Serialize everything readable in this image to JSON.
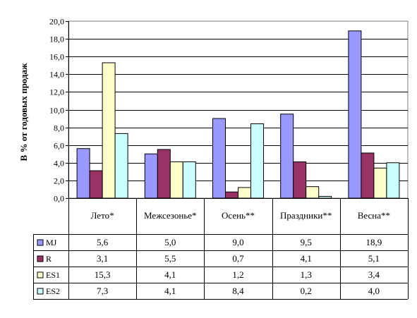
{
  "chart_data": {
    "type": "bar",
    "ylabel": "В % от годовых продаж",
    "ylim": [
      0,
      20
    ],
    "ytick_step": 2,
    "ytick_labels": [
      "0,0",
      "2,0",
      "4,0",
      "6,0",
      "8,0",
      "10,0",
      "12,0",
      "14,0",
      "16,0",
      "18,0",
      "20,0"
    ],
    "grid": true,
    "legend": "data-table",
    "categories": [
      "Лето*",
      "Межсезонье*",
      "Осень**",
      "Праздники**",
      "Весна**"
    ],
    "series": [
      {
        "name": "MJ",
        "color": "#9999ff",
        "values": [
          5.6,
          5.0,
          9.0,
          9.5,
          18.9
        ],
        "labels": [
          "5,6",
          "5,0",
          "9,0",
          "9,5",
          "18,9"
        ]
      },
      {
        "name": "R",
        "color": "#993366",
        "values": [
          3.1,
          5.5,
          0.7,
          4.1,
          5.1
        ],
        "labels": [
          "3,1",
          "5,5",
          "0,7",
          "4,1",
          "5,1"
        ]
      },
      {
        "name": "ES1",
        "color": "#ffffcc",
        "values": [
          15.3,
          4.1,
          1.2,
          1.3,
          3.4
        ],
        "labels": [
          "15,3",
          "4,1",
          "1,2",
          "1,3",
          "3,4"
        ]
      },
      {
        "name": "ES2",
        "color": "#ccffff",
        "values": [
          7.3,
          4.1,
          8.4,
          0.2,
          4.0
        ],
        "labels": [
          "7,3",
          "4,1",
          "8,4",
          "0,2",
          "4,0"
        ]
      }
    ]
  }
}
